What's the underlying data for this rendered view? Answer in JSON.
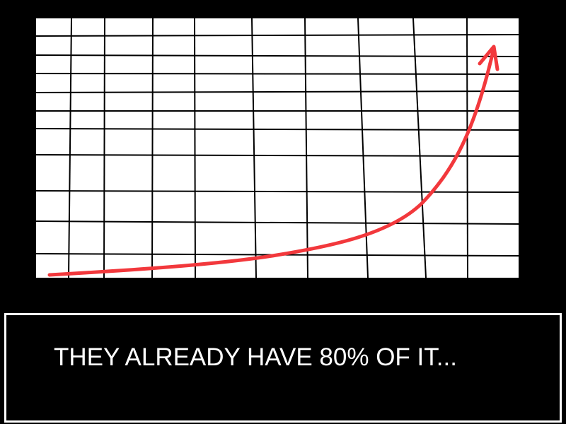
{
  "caption": {
    "text": "THEY ALREADY HAVE 80% OF IT..."
  },
  "colors": {
    "background": "#000000",
    "grid_paper": "#ffffff",
    "grid_lines": "#000000",
    "curve": "#f2383c",
    "caption_text": "#ffffff",
    "caption_border": "#ffffff"
  },
  "chart_data": {
    "type": "line",
    "title": "",
    "xlabel": "",
    "ylabel": "",
    "grid": true,
    "trend": "exponential growth",
    "arrowhead": true
  }
}
